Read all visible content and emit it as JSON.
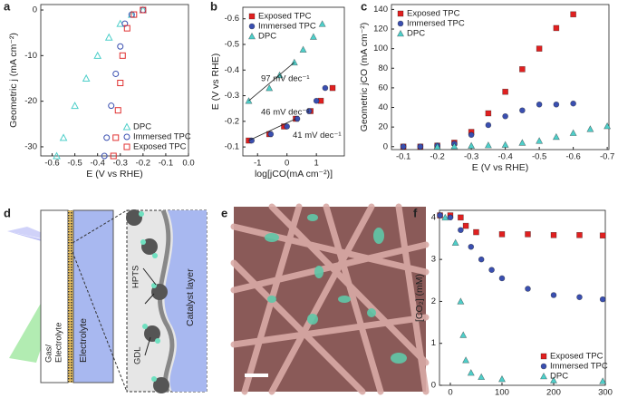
{
  "chart_data": [
    {
      "type": "scatter",
      "panel": "a",
      "xlabel": "E (V vs RHE)",
      "ylabel": "Geometric j (mA cm⁻²)",
      "xlim": [
        -0.65,
        0
      ],
      "ylim": [
        -32,
        1.2
      ],
      "xticks": [
        -0.6,
        -0.5,
        -0.4,
        -0.3,
        -0.2,
        -0.1,
        {
          "value": 0,
          "label": "0.0"
        }
      ],
      "yticks": [
        0,
        -10,
        -20,
        -30
      ],
      "filled": false,
      "legend": "lower right",
      "series": [
        {
          "name": "DPC",
          "color": "#4fcfca",
          "marker": "triangle",
          "x": [
            -0.2,
            -0.25,
            -0.3,
            -0.35,
            -0.4,
            -0.45,
            -0.5,
            -0.55,
            -0.58
          ],
          "y": [
            0,
            -1,
            -3,
            -6,
            -10,
            -15,
            -21,
            -28,
            -32
          ]
        },
        {
          "name": "Immersed TPC",
          "color": "#3a4fb0",
          "marker": "circle",
          "x": [
            -0.2,
            -0.25,
            -0.28,
            -0.3,
            -0.32,
            -0.34,
            -0.36,
            -0.37
          ],
          "y": [
            0,
            -1,
            -3,
            -8,
            -14,
            -21,
            -28,
            -32
          ]
        },
        {
          "name": "Exposed TPC",
          "color": "#e03030",
          "marker": "square",
          "x": [
            -0.2,
            -0.24,
            -0.27,
            -0.29,
            -0.3,
            -0.31,
            -0.32,
            -0.33
          ],
          "y": [
            0,
            -1,
            -4,
            -10,
            -16,
            -22,
            -28,
            -32
          ]
        }
      ]
    },
    {
      "type": "scatter",
      "panel": "b",
      "xlabel": "log[jCO(mA cm⁻²)]",
      "ylabel": "E (V vs RHE)",
      "xlim": [
        -1.5,
        1.95
      ],
      "ylim": [
        -0.065,
        -0.645
      ],
      "xticks": [
        -1,
        0,
        1
      ],
      "yticks": [
        -0.1,
        -0.2,
        -0.3,
        -0.4,
        -0.5,
        -0.6
      ],
      "filled": true,
      "legend": "upper left",
      "annotations": [
        "97 mV dec⁻¹",
        "46 mV dec⁻¹",
        "41 mV dec⁻¹"
      ],
      "series": [
        {
          "name": "Exposed TPC",
          "color": "#e02020",
          "marker": "square",
          "x": [
            -1.3,
            -0.6,
            -0.1,
            0.3,
            0.8,
            1.15,
            1.55
          ],
          "y": [
            -0.125,
            -0.15,
            -0.18,
            -0.21,
            -0.24,
            -0.28,
            -0.33
          ]
        },
        {
          "name": "Immersed TPC",
          "color": "#3a4fb0",
          "marker": "circle",
          "x": [
            -1.2,
            -0.55,
            0.0,
            0.35,
            0.75,
            1.0,
            1.3
          ],
          "y": [
            -0.125,
            -0.15,
            -0.18,
            -0.21,
            -0.24,
            -0.28,
            -0.33
          ]
        },
        {
          "name": "DPC",
          "color": "#4fcfca",
          "marker": "triangle",
          "x": [
            -1.3,
            -0.6,
            -0.25,
            0.25,
            0.55,
            0.9,
            1.2
          ],
          "y": [
            -0.28,
            -0.33,
            -0.38,
            -0.43,
            -0.48,
            -0.53,
            -0.58
          ]
        }
      ]
    },
    {
      "type": "scatter",
      "panel": "c",
      "xlabel": "E (V vs RHE)",
      "ylabel": "Geometric jCO (mA cm⁻²)",
      "xlim": [
        -0.065,
        -0.705
      ],
      "ylim": [
        -3,
        145
      ],
      "xticks": [
        -0.1,
        -0.2,
        -0.3,
        -0.4,
        -0.5,
        -0.6,
        -0.7
      ],
      "yticks": [
        0,
        20,
        40,
        60,
        80,
        100,
        120,
        140
      ],
      "filled": true,
      "legend": "upper left",
      "series": [
        {
          "name": "Exposed TPC",
          "color": "#e02020",
          "marker": "square",
          "x": [
            -0.1,
            -0.15,
            -0.2,
            -0.25,
            -0.3,
            -0.35,
            -0.4,
            -0.45,
            -0.5,
            -0.55,
            -0.6
          ],
          "y": [
            0,
            0,
            1,
            4,
            15,
            34,
            56,
            79,
            100,
            121,
            135
          ]
        },
        {
          "name": "Immersed TPC",
          "color": "#3a4fb0",
          "marker": "circle",
          "x": [
            -0.1,
            -0.15,
            -0.2,
            -0.25,
            -0.3,
            -0.35,
            -0.4,
            -0.45,
            -0.5,
            -0.55,
            -0.6
          ],
          "y": [
            0,
            0,
            1,
            3,
            12,
            22,
            31,
            37,
            43,
            43,
            44
          ]
        },
        {
          "name": "DPC",
          "color": "#4fcfca",
          "marker": "triangle",
          "x": [
            -0.2,
            -0.25,
            -0.3,
            -0.35,
            -0.4,
            -0.45,
            -0.5,
            -0.55,
            -0.6,
            -0.65,
            -0.7
          ],
          "y": [
            0,
            0.5,
            1,
            1.5,
            2,
            4,
            6,
            10,
            14,
            18,
            21
          ]
        }
      ]
    },
    {
      "type": "scatter",
      "panel": "f",
      "xlabel": "Time (s)",
      "ylabel": "[CO₂] (mM)",
      "xlim": [
        -21,
        300
      ],
      "ylim": [
        0,
        4.17
      ],
      "xticks": [
        0,
        100,
        200,
        300
      ],
      "yticks": [
        0,
        1,
        2,
        3,
        4
      ],
      "filled": true,
      "legend": "lower right",
      "series": [
        {
          "name": "Exposed TPC",
          "color": "#e02020",
          "marker": "square",
          "x": [
            -20,
            0,
            20,
            30,
            50,
            100,
            150,
            200,
            250,
            295
          ],
          "y": [
            4.05,
            4.05,
            4.0,
            3.8,
            3.65,
            3.6,
            3.6,
            3.58,
            3.58,
            3.57
          ]
        },
        {
          "name": "Immersed TPC",
          "color": "#3a4fb0",
          "marker": "circle",
          "x": [
            -20,
            0,
            20,
            40,
            60,
            80,
            100,
            150,
            200,
            250,
            295
          ],
          "y": [
            4.05,
            4.0,
            3.7,
            3.3,
            3.0,
            2.75,
            2.55,
            2.3,
            2.15,
            2.1,
            2.05
          ]
        },
        {
          "name": "DPC",
          "color": "#4fcfca",
          "marker": "triangle",
          "x": [
            -10,
            10,
            20,
            25,
            30,
            40,
            60,
            100,
            200,
            295
          ],
          "y": [
            4.0,
            3.4,
            2.0,
            1.2,
            0.6,
            0.3,
            0.2,
            0.15,
            0.12,
            0.1
          ]
        }
      ]
    }
  ],
  "diagram_d": {
    "panel": "d",
    "gas_electrolyte": [
      "Gas/",
      "Electrolyte"
    ],
    "electrolyte": "Electrolyte",
    "hpts": "HPTS",
    "gdl": "GDL",
    "catalyst_layer": "Catalyst layer"
  },
  "image_e": {
    "panel": "e"
  }
}
